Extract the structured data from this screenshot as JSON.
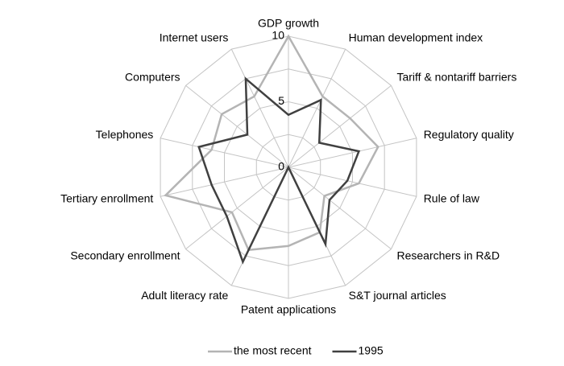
{
  "chart_data": {
    "type": "radar",
    "categories": [
      "GDP growth",
      "Human development index",
      "Tariff & nontariff barriers",
      "Regulatory quality",
      "Rule of law",
      "Researchers in R&D",
      "S&T journal articles",
      "Patent applications",
      "Adult literacy rate",
      "Secondary enrollment",
      "Tertiary enrollment",
      "Telephones",
      "Computers",
      "Internet users"
    ],
    "series": [
      {
        "name": "the most recent",
        "color": "#b4b4b4",
        "values": [
          10,
          6,
          6,
          7,
          5.5,
          3.5,
          5.5,
          6,
          7,
          5.5,
          9.6,
          6,
          6.5,
          6
        ]
      },
      {
        "name": "1995",
        "color": "#404040",
        "values": [
          4,
          5.7,
          3,
          5.5,
          4.6,
          4,
          6.5,
          0,
          8,
          6,
          6,
          7,
          4,
          7.5
        ]
      }
    ],
    "ylim": [
      0,
      10
    ],
    "yticks": [
      0,
      5,
      10
    ],
    "minor_yticks": [
      2.5,
      7.5
    ],
    "grid": true,
    "legend": "bottom"
  }
}
